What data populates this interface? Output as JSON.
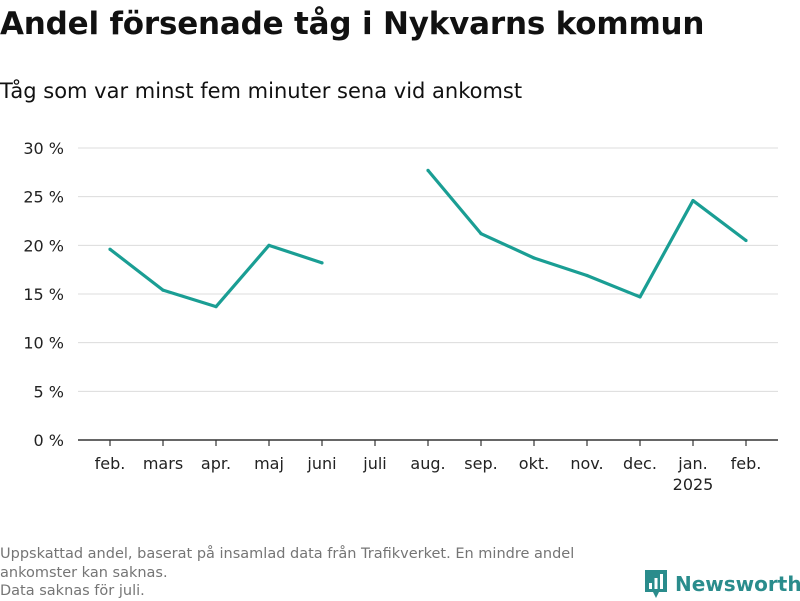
{
  "title": "Andel försenade tåg i Nykvarns kommun",
  "subtitle": "Tåg som var minst fem minuter sena vid ankomst",
  "footnote": {
    "lines": [
      "Uppskattad andel, baserat på insamlad data från Trafikverket. En mindre andel ankomster kan saknas.",
      "Data saknas för juli."
    ]
  },
  "brand": {
    "name": "Newsworthy",
    "icon": "newsworthy-logo-icon",
    "color": "#2a8c8c"
  },
  "chart_data": {
    "type": "line",
    "categories": [
      "feb.",
      "mars",
      "apr.",
      "maj",
      "juni",
      "juli",
      "aug.",
      "sep.",
      "okt.",
      "nov.",
      "dec.",
      "jan.",
      "feb."
    ],
    "category_sublabels": [
      "",
      "",
      "",
      "",
      "",
      "",
      "",
      "",
      "",
      "",
      "",
      "2025",
      ""
    ],
    "series": [
      {
        "values": [
          19.6,
          15.4,
          13.7,
          20.0,
          18.2,
          null,
          27.7,
          21.2,
          18.7,
          16.9,
          14.7,
          24.6,
          20.5
        ],
        "color": "#1a9e94"
      }
    ],
    "y_ticks": [
      0,
      5,
      10,
      15,
      20,
      25,
      30
    ],
    "y_tick_labels": [
      "0 %",
      "5 %",
      "10 %",
      "15 %",
      "20 %",
      "25 %",
      "30 %"
    ],
    "ylim": [
      0,
      30
    ],
    "grid": true,
    "xlabel": "",
    "ylabel": ""
  }
}
